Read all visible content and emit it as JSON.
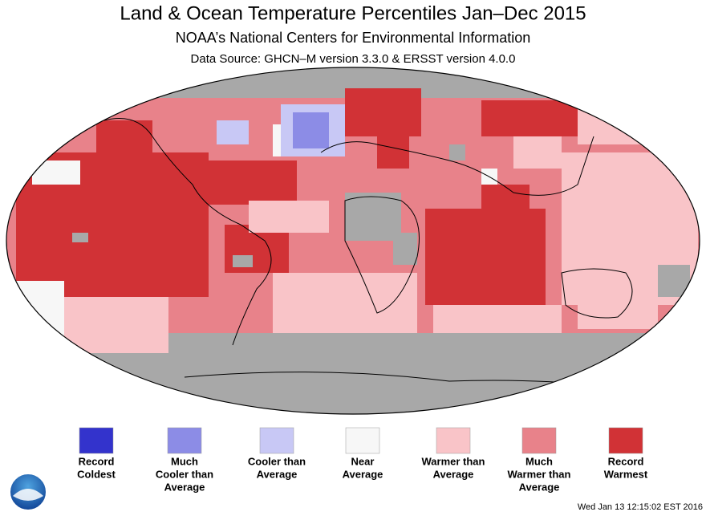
{
  "header": {
    "title": "Land & Ocean Temperature Percentiles Jan–Dec 2015",
    "subtitle": "NOAA’s National Centers for Environmental Information",
    "source": "Data Source: GHCN–M version 3.3.0 & ERSST version 4.0.0"
  },
  "legend": {
    "items": [
      {
        "label": [
          "Record",
          "Coldest"
        ],
        "color": "#3333cc"
      },
      {
        "label": [
          "Much",
          "Cooler than",
          "Average"
        ],
        "color": "#8c8ce6"
      },
      {
        "label": [
          "Cooler than",
          "Average"
        ],
        "color": "#c8c8f5"
      },
      {
        "label": [
          "Near",
          "Average"
        ],
        "color": "#f7f7f7"
      },
      {
        "label": [
          "Warmer than",
          "Average"
        ],
        "color": "#f9c4c8"
      },
      {
        "label": [
          "Much",
          "Warmer than",
          "Average"
        ],
        "color": "#e8828a"
      },
      {
        "label": [
          "Record",
          "Warmest"
        ],
        "color": "#d13236"
      }
    ]
  },
  "footer": {
    "timestamp": "Wed Jan 13 12:15:02 EST 2016"
  }
}
